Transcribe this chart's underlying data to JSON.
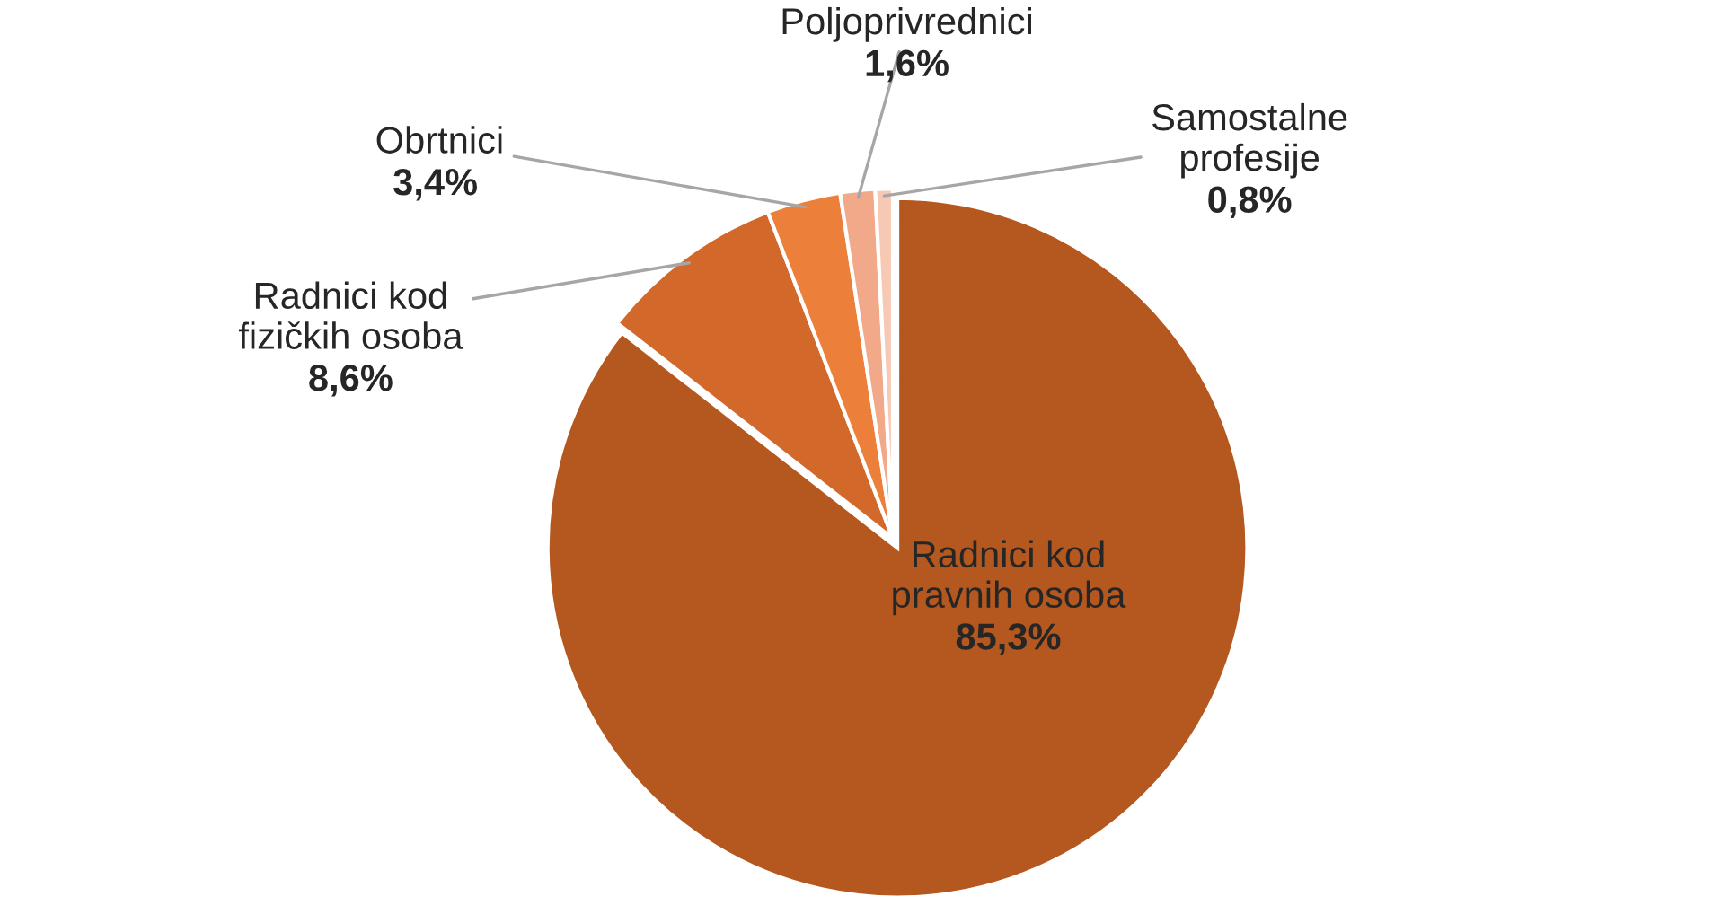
{
  "chart_data": {
    "type": "pie",
    "categories": [
      "Radnici kod pravnih osoba",
      "Radnici kod fizičkih osoba",
      "Obrtnici",
      "Poljoprivrednici",
      "Samostalne profesije"
    ],
    "values": [
      85.3,
      8.6,
      3.4,
      1.6,
      0.8
    ],
    "colors": [
      "#b5581f",
      "#d2692a",
      "#ec7f3a",
      "#f2a98a",
      "#f7c9b5"
    ],
    "value_labels": [
      "85,3%",
      "8,6%",
      "3,4%",
      "1,6%",
      "0,8%"
    ]
  }
}
